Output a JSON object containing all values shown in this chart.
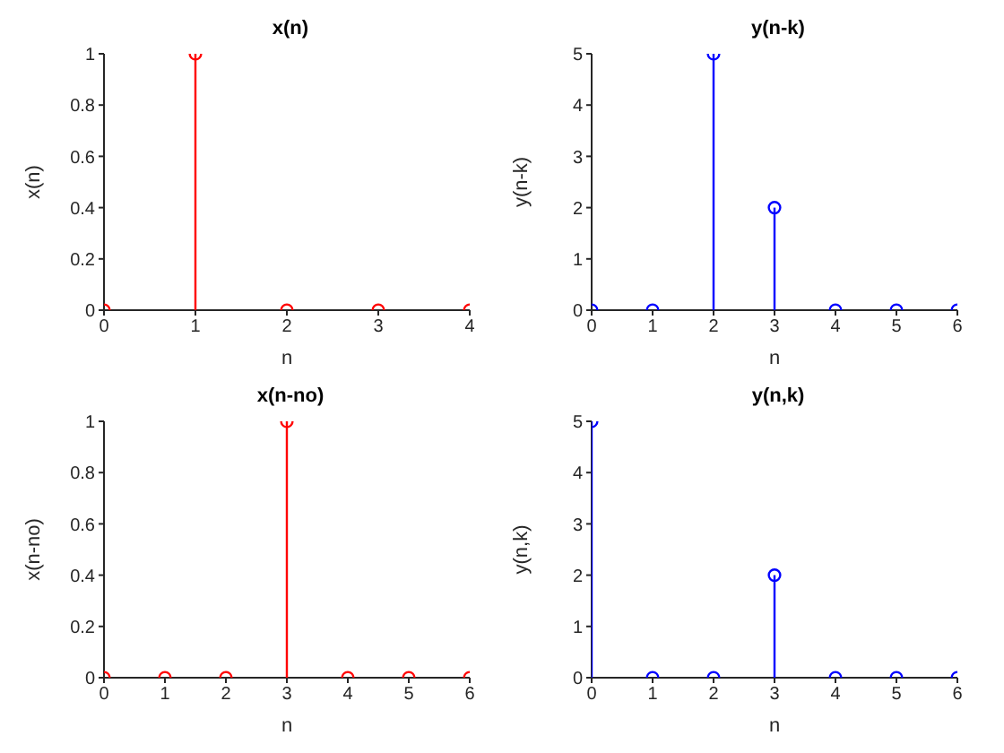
{
  "chart_data": [
    {
      "type": "lollipop",
      "title": "x(n)",
      "xlabel": "n",
      "ylabel": "x(n)",
      "x": [
        0,
        1,
        2,
        3,
        4
      ],
      "series": [
        {
          "color": "#ff0000",
          "values": [
            0,
            1,
            0,
            0,
            0
          ]
        }
      ],
      "xlim": [
        0,
        4
      ],
      "xticks": [
        0,
        1,
        2,
        3,
        4
      ],
      "ylim": [
        0,
        1
      ],
      "yticks": [
        0,
        0.2,
        0.4,
        0.6,
        0.8,
        1
      ],
      "marker": "circle"
    },
    {
      "type": "lollipop",
      "title": "y(n-k)",
      "xlabel": "n",
      "ylabel": "y(n-k)",
      "x": [
        0,
        1,
        2,
        3,
        4,
        5,
        6
      ],
      "series": [
        {
          "color": "#0000ff",
          "values": [
            0,
            0,
            5,
            2,
            0,
            0,
            0
          ]
        }
      ],
      "xlim": [
        0,
        6
      ],
      "xticks": [
        0,
        1,
        2,
        3,
        4,
        5,
        6
      ],
      "ylim": [
        0,
        5
      ],
      "yticks": [
        0,
        1,
        2,
        3,
        4,
        5
      ],
      "marker": "circle"
    },
    {
      "type": "lollipop",
      "title": "x(n-no)",
      "xlabel": "n",
      "ylabel": "x(n-no)",
      "x": [
        0,
        1,
        2,
        3,
        4,
        5,
        6
      ],
      "series": [
        {
          "color": "#ff0000",
          "values": [
            0,
            0,
            0,
            1,
            0,
            0,
            0
          ]
        }
      ],
      "xlim": [
        0,
        6
      ],
      "xticks": [
        0,
        1,
        2,
        3,
        4,
        5,
        6
      ],
      "ylim": [
        0,
        1
      ],
      "yticks": [
        0,
        0.2,
        0.4,
        0.6,
        0.8,
        1
      ],
      "marker": "circle"
    },
    {
      "type": "lollipop",
      "title": "y(n,k)",
      "xlabel": "n",
      "ylabel": "y(n,k)",
      "x": [
        0,
        1,
        2,
        3,
        4,
        5,
        6
      ],
      "series": [
        {
          "color": "#0000ff",
          "values": [
            5,
            0,
            0,
            2,
            0,
            0,
            0
          ]
        }
      ],
      "xlim": [
        0,
        6
      ],
      "xticks": [
        0,
        1,
        2,
        3,
        4,
        5,
        6
      ],
      "ylim": [
        0,
        5
      ],
      "yticks": [
        0,
        1,
        2,
        3,
        4,
        5
      ],
      "marker": "circle"
    }
  ]
}
